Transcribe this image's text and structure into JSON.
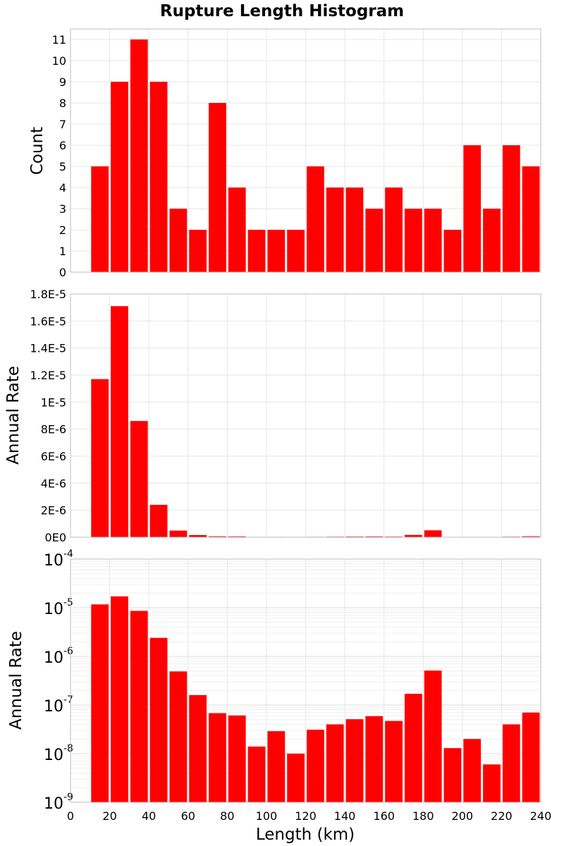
{
  "chart_data": [
    {
      "type": "bar",
      "title": "Rupture Length Histogram",
      "ylabel": "Count",
      "xlabel": "",
      "xlim": [
        0,
        240
      ],
      "ylim": [
        0,
        11.5
      ],
      "yscale": "linear",
      "grid": true,
      "color": "#ff0000",
      "bin_width": 10,
      "x": [
        15,
        25,
        35,
        45,
        55,
        65,
        75,
        85,
        95,
        105,
        115,
        125,
        135,
        145,
        155,
        165,
        175,
        185,
        195,
        205,
        215,
        225,
        235
      ],
      "values": [
        5,
        9,
        11,
        9,
        3,
        2,
        8,
        4,
        2,
        2,
        2,
        5,
        4,
        4,
        3,
        4,
        3,
        3,
        2,
        6,
        3,
        6,
        5
      ],
      "y_tick_labels": [
        "0",
        "1",
        "2",
        "3",
        "4",
        "5",
        "6",
        "7",
        "8",
        "9",
        "10",
        "11"
      ]
    },
    {
      "type": "bar",
      "title": "",
      "ylabel": "Annual Rate",
      "xlabel": "",
      "xlim": [
        0,
        240
      ],
      "ylim": [
        0,
        1.8e-05
      ],
      "yscale": "linear",
      "grid": true,
      "color": "#ff0000",
      "bin_width": 10,
      "x": [
        15,
        25,
        35,
        45,
        55,
        65,
        75,
        85,
        95,
        105,
        115,
        125,
        135,
        145,
        155,
        165,
        175,
        185,
        195,
        205,
        215,
        225,
        235
      ],
      "values": [
        1.17e-05,
        1.71e-05,
        8.6e-06,
        2.4e-06,
        4.9e-07,
        1.6e-07,
        6.8e-08,
        6.1e-08,
        1.4e-08,
        2.9e-08,
        1e-08,
        3.1e-08,
        4e-08,
        5.1e-08,
        5.9e-08,
        4.7e-08,
        1.7e-07,
        5.1e-07,
        1.3e-08,
        2e-08,
        6e-09,
        4e-08,
        7e-08
      ],
      "y_tick_labels": [
        "0E0",
        "2E-6",
        "4E-6",
        "6E-6",
        "8E-6",
        "1E-5",
        "1.2E-5",
        "1.4E-5",
        "1.6E-5",
        "1.8E-5"
      ]
    },
    {
      "type": "bar",
      "title": "",
      "ylabel": "Annual Rate",
      "xlabel": "Length (km)",
      "xlim": [
        0,
        240
      ],
      "ylim": [
        1e-09,
        0.0001
      ],
      "yscale": "log",
      "grid": true,
      "color": "#ff0000",
      "bin_width": 10,
      "x": [
        15,
        25,
        35,
        45,
        55,
        65,
        75,
        85,
        95,
        105,
        115,
        125,
        135,
        145,
        155,
        165,
        175,
        185,
        195,
        205,
        215,
        225,
        235
      ],
      "values": [
        1.17e-05,
        1.71e-05,
        8.6e-06,
        2.4e-06,
        4.9e-07,
        1.6e-07,
        6.8e-08,
        6.1e-08,
        1.4e-08,
        2.9e-08,
        1e-08,
        3.1e-08,
        4e-08,
        5.1e-08,
        5.9e-08,
        4.7e-08,
        1.7e-07,
        5.1e-07,
        1.3e-08,
        2e-08,
        6e-09,
        4e-08,
        7e-08
      ],
      "y_tick_base": "10",
      "y_tick_exponents": [
        "-9",
        "-8",
        "-7",
        "-6",
        "-5",
        "-4"
      ],
      "x_tick_labels": [
        "0",
        "20",
        "40",
        "60",
        "80",
        "100",
        "120",
        "140",
        "160",
        "180",
        "200",
        "220",
        "240"
      ]
    }
  ]
}
